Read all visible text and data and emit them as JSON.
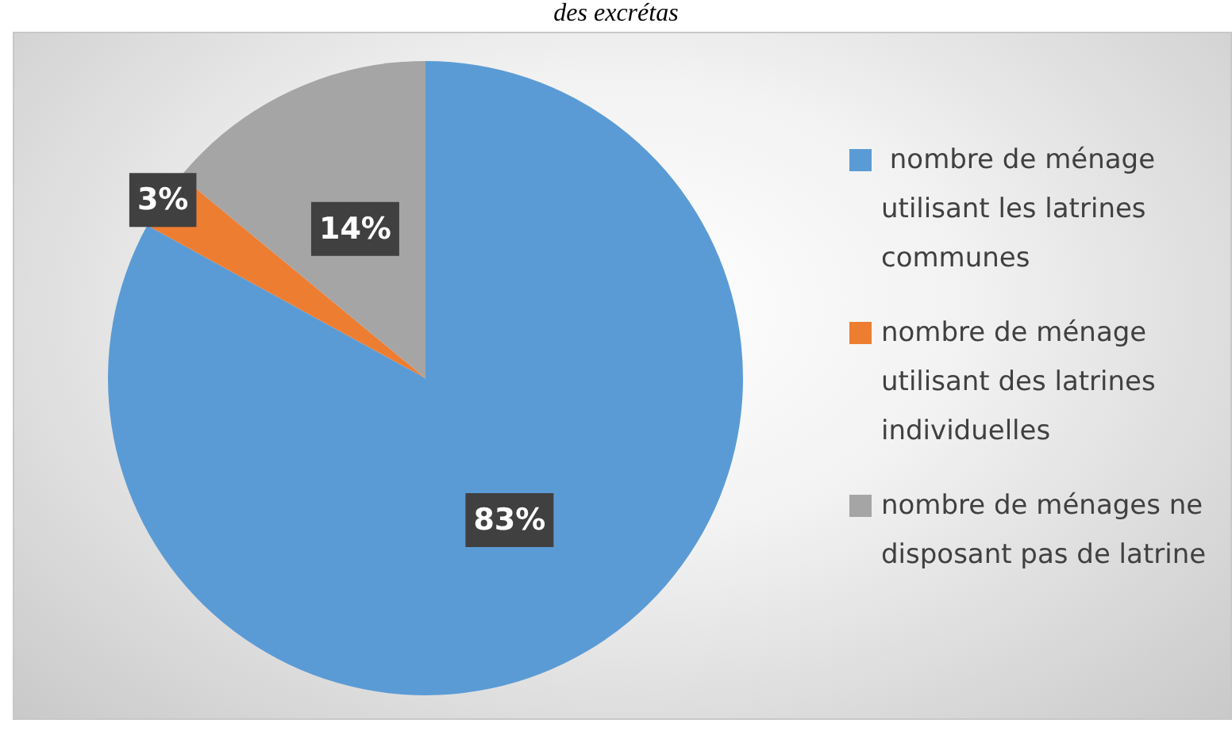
{
  "chart_data": {
    "type": "pie",
    "title": "des excrétas",
    "categories": [
      " nombre de ménage utilisant les latrines communes",
      "nombre de ménage utilisant des latrines individuelles",
      "nombre de ménages ne disposant pas de latrine"
    ],
    "values": [
      83,
      3,
      14
    ],
    "colors": [
      "#5b9bd5",
      "#ed7d31",
      "#a5a5a5"
    ],
    "value_labels": [
      "83%",
      "3%",
      "14%"
    ],
    "legend": "right"
  }
}
